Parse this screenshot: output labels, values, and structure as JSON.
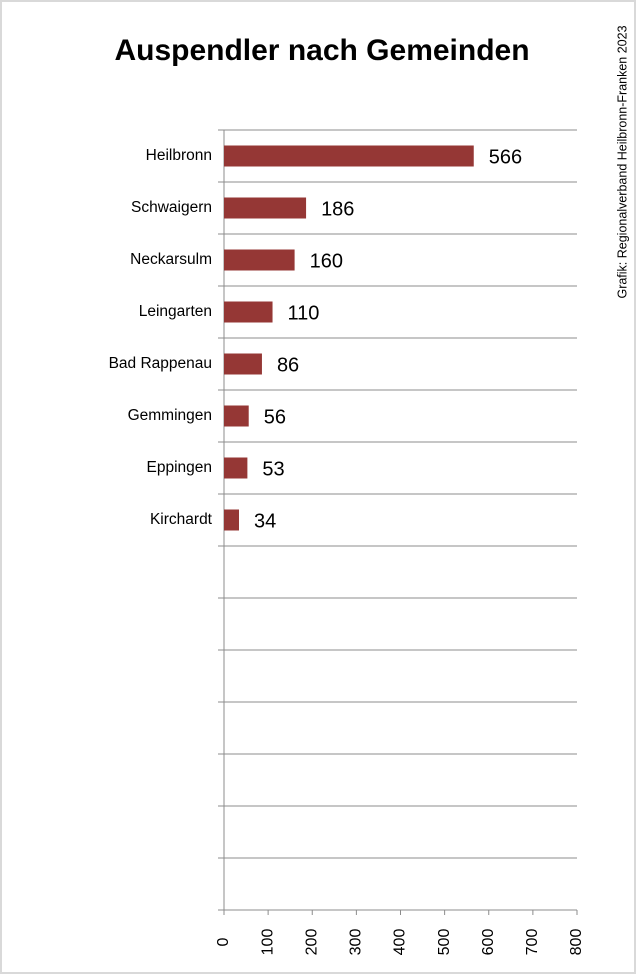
{
  "chart_data": {
    "type": "bar",
    "orientation": "horizontal",
    "title": "Auspendler nach Gemeinden",
    "source": "Grafik: Regionalverband Heilbronn-Franken 2023",
    "categories": [
      "Heilbronn",
      "Schwaigern",
      "Neckarsulm",
      "Leingarten",
      "Bad Rappenau",
      "Gemmingen",
      "Eppingen",
      "Kirchardt",
      null,
      null,
      null,
      null,
      null,
      null,
      null
    ],
    "values": [
      566,
      186,
      160,
      110,
      86,
      56,
      53,
      34,
      null,
      null,
      null,
      null,
      null,
      null,
      null
    ],
    "color": "#953735",
    "xlim": [
      0,
      800
    ],
    "xticks": [
      0,
      100,
      200,
      300,
      400,
      500,
      600,
      700,
      800
    ],
    "grid": true
  }
}
